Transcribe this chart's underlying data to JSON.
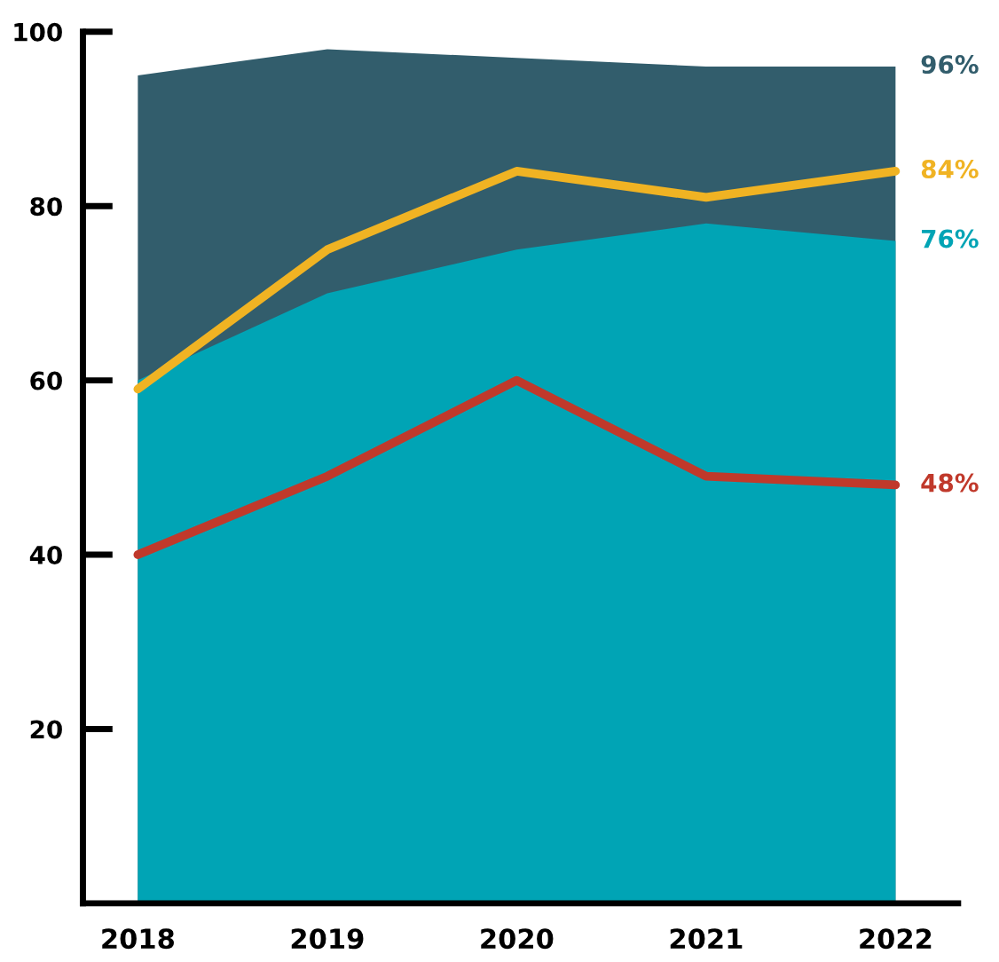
{
  "chart_data": {
    "type": "area",
    "categories": [
      "2018",
      "2019",
      "2020",
      "2021",
      "2022"
    ],
    "series": [
      {
        "color": "#325d6c",
        "values": [
          95,
          98,
          97,
          96,
          96
        ],
        "value_labels": [
          null,
          null,
          null,
          null,
          "96%"
        ]
      },
      {
        "color": "#00a4b5",
        "values": [
          60,
          70,
          75,
          78,
          76
        ],
        "value_labels": [
          null,
          null,
          null,
          null,
          "76%"
        ]
      },
      {
        "type": "line",
        "color": "#f0b323",
        "values": [
          59,
          75,
          84,
          81,
          84
        ],
        "value_labels": [
          null,
          null,
          null,
          null,
          "84%"
        ]
      },
      {
        "type": "line",
        "color": "#c0392b",
        "values": [
          40,
          49,
          60,
          49,
          48
        ],
        "value_labels": [
          null,
          null,
          null,
          null,
          "48%"
        ]
      }
    ],
    "ylim": [
      0,
      100
    ],
    "yticks": [
      20,
      40,
      60,
      80,
      100
    ],
    "grid": false,
    "legend": false,
    "marker": "none",
    "line_style": "solid"
  }
}
